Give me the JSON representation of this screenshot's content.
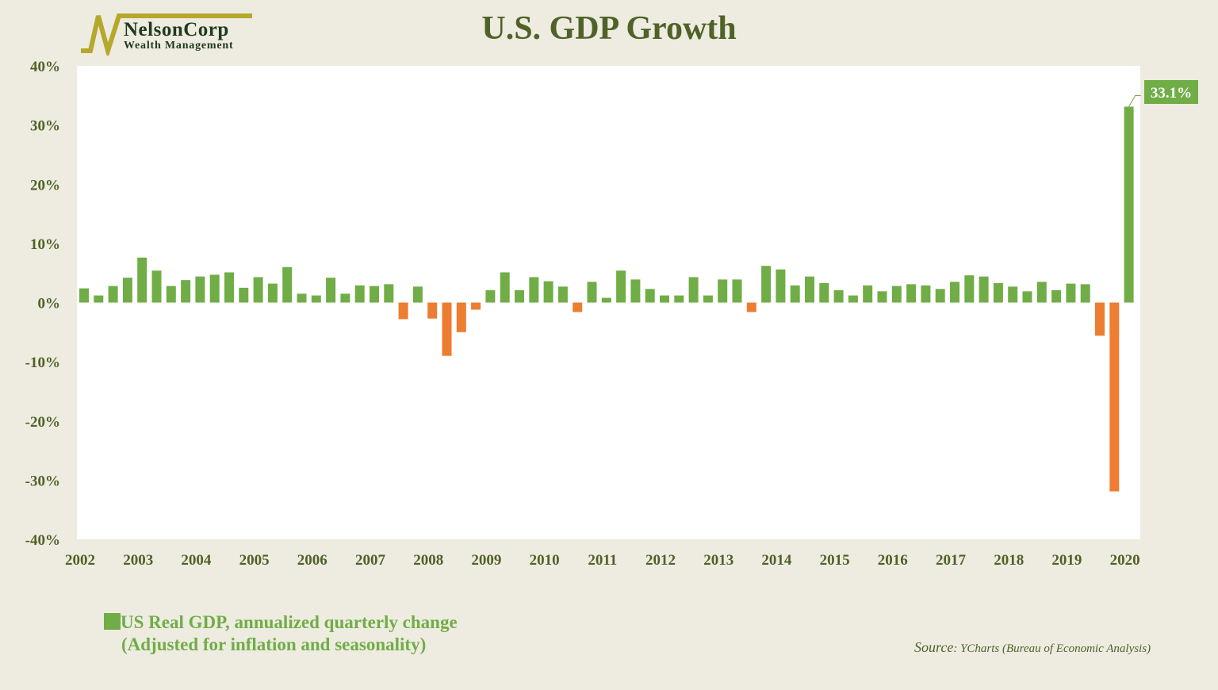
{
  "title": "U.S. GDP Growth",
  "logo": {
    "name": "NelsonCorp",
    "subtitle": "Wealth Management"
  },
  "legend": {
    "line1": "US Real GDP, annualized quarterly change",
    "line2": "(Adjusted for inflation and seasonality)"
  },
  "source": {
    "label": "Source",
    "text": ": YCharts (Bureau of Economic Analysis)"
  },
  "colors": {
    "positive": "#70ad47",
    "negative": "#ed7d31",
    "background": "#eeebe0",
    "plot": "#ffffff",
    "text": "#4f6228"
  },
  "chart_data": {
    "type": "bar",
    "title": "U.S. GDP Growth",
    "xlabel": "",
    "ylabel": "",
    "ylim": [
      -40,
      40
    ],
    "yticks": [
      "40%",
      "30%",
      "20%",
      "10%",
      "0%",
      "-10%",
      "-20%",
      "-30%",
      "-40%"
    ],
    "ytick_values": [
      40,
      30,
      20,
      10,
      0,
      -10,
      -20,
      -30,
      -40
    ],
    "xtick_labels": [
      "2002",
      "2003",
      "2004",
      "2005",
      "2006",
      "2007",
      "2008",
      "2009",
      "2010",
      "2011",
      "2012",
      "2013",
      "2014",
      "2015",
      "2016",
      "2017",
      "2018",
      "2019",
      "2020"
    ],
    "categories_note_quarters_from": "2002 Q3",
    "values": [
      2.4,
      1.2,
      2.8,
      4.2,
      7.6,
      5.4,
      2.8,
      3.8,
      4.4,
      4.7,
      5.1,
      2.5,
      4.3,
      3.2,
      6.0,
      1.5,
      1.2,
      4.2,
      1.5,
      2.9,
      2.8,
      3.1,
      -2.8,
      2.7,
      -2.7,
      -9.0,
      -5.0,
      -1.2,
      2.1,
      5.1,
      2.1,
      4.3,
      3.6,
      2.7,
      -1.6,
      3.5,
      0.8,
      5.4,
      3.9,
      2.3,
      1.2,
      1.2,
      4.3,
      1.2,
      3.9,
      3.9,
      -1.6,
      6.2,
      5.6,
      2.9,
      4.4,
      3.3,
      2.1,
      1.2,
      2.9,
      1.9,
      2.8,
      3.1,
      2.9,
      2.3,
      3.5,
      4.6,
      4.4,
      3.3,
      2.7,
      1.9,
      3.5,
      2.1,
      3.2,
      3.1,
      -5.6,
      -31.9,
      33.1
    ],
    "annotation": "33.1%",
    "grid": false,
    "legend_placement": "bottom-left"
  }
}
